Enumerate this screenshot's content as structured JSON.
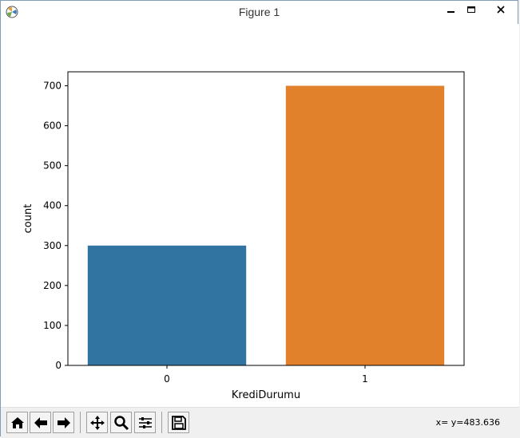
{
  "window": {
    "title": "Figure 1",
    "app_icon": "matplotlib-icon",
    "controls": [
      "minimize-icon",
      "maximize-icon",
      "close-icon"
    ]
  },
  "toolbar": {
    "buttons": [
      "home-icon",
      "back-arrow-icon",
      "forward-arrow-icon",
      "pan-icon",
      "zoom-icon",
      "subplots-icon",
      "save-icon"
    ],
    "coordinate_readout": "x= y=483.636"
  },
  "chart_data": {
    "type": "bar",
    "categories": [
      "0",
      "1"
    ],
    "values": [
      300,
      700
    ],
    "colors": [
      "#3274a1",
      "#e1812c"
    ],
    "title": "",
    "xlabel": "KrediDurumu",
    "ylabel": "count",
    "ylim": [
      0,
      735
    ],
    "yticks": [
      0,
      100,
      200,
      300,
      400,
      500,
      600,
      700
    ],
    "grid": false
  }
}
